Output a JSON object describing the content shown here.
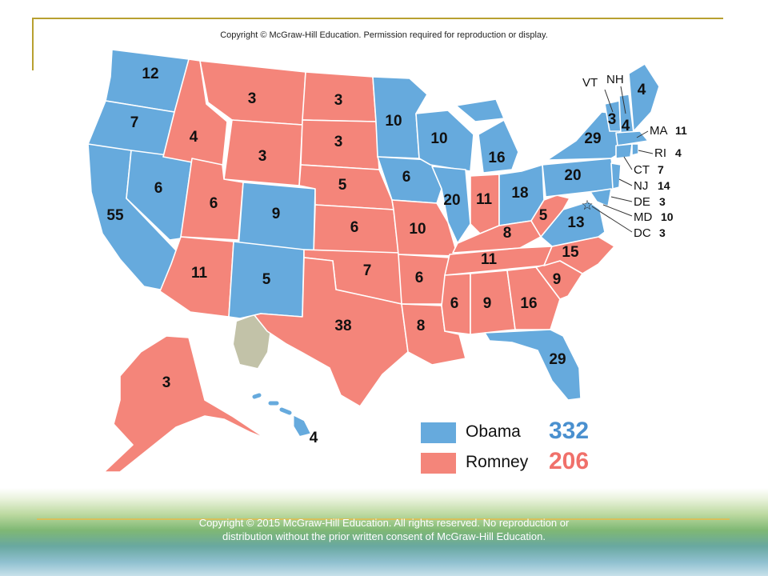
{
  "header": {
    "copyright": "Copyright © McGraw-Hill Education. Permission required for reproduction or display."
  },
  "colors": {
    "obama": "#66aadd",
    "romney": "#f4857a",
    "other": "#c2c2a8"
  },
  "legend": {
    "obama_label": "Obama",
    "obama_total": "332",
    "romney_label": "Romney",
    "romney_total": "206"
  },
  "states": {
    "WA": "12",
    "OR": "7",
    "CA": "55",
    "NV": "6",
    "ID": "4",
    "MT": "3",
    "WY": "3",
    "UT": "6",
    "CO": "9",
    "AZ": "11",
    "NM": "5",
    "ND": "3",
    "SD": "3",
    "NE": "5",
    "KS": "6",
    "OK": "7",
    "TX": "38",
    "MN": "10",
    "IA": "6",
    "MO": "10",
    "AR": "6",
    "LA": "8",
    "WI": "10",
    "IL": "20",
    "MI": "16",
    "IN": "11",
    "OH": "18",
    "KY": "8",
    "TN": "11",
    "MS": "6",
    "AL": "9",
    "GA": "16",
    "FL": "29",
    "SC": "9",
    "NC": "15",
    "VA": "13",
    "WV": "5",
    "PA": "20",
    "NY": "29",
    "VT": "3",
    "NH": "4",
    "ME": "4",
    "AK": "3",
    "HI": "4"
  },
  "northeast_labels": {
    "VT": "VT",
    "NH": "NH",
    "MA": "MA",
    "MA_ev": "11",
    "RI": "RI",
    "RI_ev": "4",
    "CT": "CT",
    "CT_ev": "7",
    "NJ": "NJ",
    "NJ_ev": "14",
    "DE": "DE",
    "DE_ev": "3",
    "MD": "MD",
    "MD_ev": "10",
    "DC": "DC",
    "DC_ev": "3"
  },
  "footer": {
    "copyright": "Copyright © 2015 McGraw-Hill Education. All rights reserved. No reproduction or distribution without the prior written consent of McGraw-Hill Education."
  }
}
